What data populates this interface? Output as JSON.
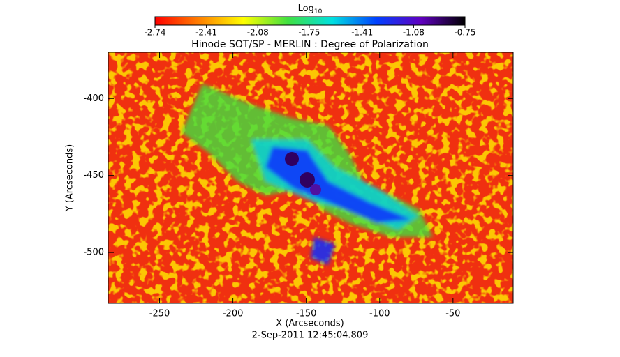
{
  "chart_data": {
    "type": "heatmap",
    "title": "Hinode SOT/SP - MERLIN : Degree of Polarization",
    "x_label": "X (Arcseconds)",
    "y_label": "Y (Arcseconds)",
    "footer": "2-Sep-2011 12:45:04.809",
    "colorbar": {
      "label": "Log",
      "label_subscript": "10",
      "lim": [
        -2.74,
        -0.75
      ],
      "ticks": [
        -2.74,
        -2.41,
        -2.08,
        -1.75,
        -1.41,
        -1.08,
        -0.75
      ],
      "colors": [
        "#ff0000",
        "#ff8000",
        "#ffff00",
        "#40e040",
        "#00e0e0",
        "#0040ff",
        "#6000c0",
        "#000000"
      ]
    },
    "xlim": [
      -285,
      -9
    ],
    "xticks": [
      -250,
      -200,
      -150,
      -100,
      -50
    ],
    "ylim": [
      -533,
      -370
    ],
    "yticks": [
      -400,
      -450,
      -500
    ]
  }
}
